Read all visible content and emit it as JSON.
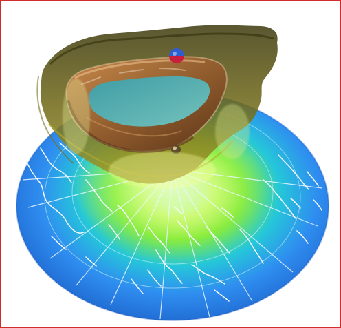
{
  "image": {
    "kind": "polar-ozone-visualization",
    "has_frame": true,
    "colors": {
      "frame": "#d12b2b",
      "background": "#ffffff",
      "disc_blue": "#1f6fd8",
      "disc_cyan": "#25c7d9",
      "ring_green": "#8bee34",
      "ring_yellow": "#e7ff5a",
      "vortex_brown": "#8e5a2c",
      "cap_olive": "#5b5414",
      "coast_white": "#f7fbff"
    },
    "icons": {
      "sphere_marker": "sphere-marker-icon",
      "small_marker": "small-marker-icon"
    }
  }
}
